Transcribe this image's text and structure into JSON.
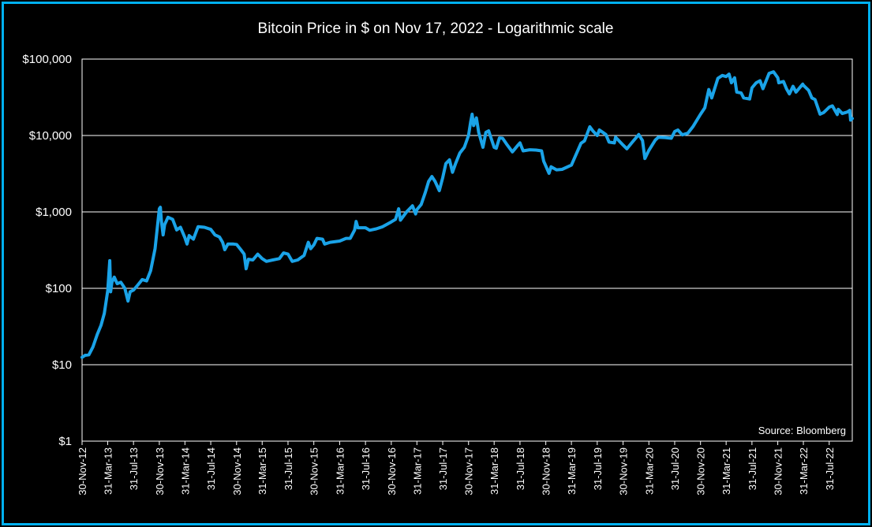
{
  "colors": {
    "line": "#1aa3e8",
    "frame": "#00b0f0",
    "background": "#000000",
    "grid": "#ffffff",
    "text": "#ffffff"
  },
  "chart_data": {
    "type": "line",
    "title": "Bitcoin Price in $ on Nov 17, 2022 - Logarithmic scale",
    "xlabel": "",
    "ylabel": "",
    "y_scale": "log",
    "ylim": [
      1,
      100000
    ],
    "xlim": [
      "2012-11-30",
      "2022-11-17"
    ],
    "grid": true,
    "legend": "none",
    "y_ticks": [
      {
        "value": 1,
        "label": "$1"
      },
      {
        "value": 10,
        "label": "$10"
      },
      {
        "value": 100,
        "label": "$100"
      },
      {
        "value": 1000,
        "label": "$1,000"
      },
      {
        "value": 10000,
        "label": "$10,000"
      },
      {
        "value": 100000,
        "label": "$100,000"
      }
    ],
    "x_ticks": [
      {
        "date": "2012-11-30",
        "label": "30-Nov-12"
      },
      {
        "date": "2013-03-31",
        "label": "31-Mar-13"
      },
      {
        "date": "2013-07-31",
        "label": "31-Jul-13"
      },
      {
        "date": "2013-11-30",
        "label": "30-Nov-13"
      },
      {
        "date": "2014-03-31",
        "label": "31-Mar-14"
      },
      {
        "date": "2014-07-31",
        "label": "31-Jul-14"
      },
      {
        "date": "2014-11-30",
        "label": "30-Nov-14"
      },
      {
        "date": "2015-03-31",
        "label": "31-Mar-15"
      },
      {
        "date": "2015-07-31",
        "label": "31-Jul-15"
      },
      {
        "date": "2015-11-30",
        "label": "30-Nov-15"
      },
      {
        "date": "2016-03-31",
        "label": "31-Mar-16"
      },
      {
        "date": "2016-07-31",
        "label": "31-Jul-16"
      },
      {
        "date": "2016-11-30",
        "label": "30-Nov-16"
      },
      {
        "date": "2017-03-31",
        "label": "31-Mar-17"
      },
      {
        "date": "2017-07-31",
        "label": "31-Jul-17"
      },
      {
        "date": "2017-11-30",
        "label": "30-Nov-17"
      },
      {
        "date": "2018-03-31",
        "label": "31-Mar-18"
      },
      {
        "date": "2018-07-31",
        "label": "31-Jul-18"
      },
      {
        "date": "2018-11-30",
        "label": "30-Nov-18"
      },
      {
        "date": "2019-03-31",
        "label": "31-Mar-19"
      },
      {
        "date": "2019-07-31",
        "label": "31-Jul-19"
      },
      {
        "date": "2019-11-30",
        "label": "30-Nov-19"
      },
      {
        "date": "2020-03-31",
        "label": "31-Mar-20"
      },
      {
        "date": "2020-07-31",
        "label": "31-Jul-20"
      },
      {
        "date": "2020-11-30",
        "label": "30-Nov-20"
      },
      {
        "date": "2021-03-31",
        "label": "31-Mar-21"
      },
      {
        "date": "2021-07-31",
        "label": "31-Jul-21"
      },
      {
        "date": "2021-11-30",
        "label": "30-Nov-21"
      },
      {
        "date": "2022-03-31",
        "label": "31-Mar-22"
      },
      {
        "date": "2022-07-31",
        "label": "31-Jul-22"
      }
    ],
    "series": [
      {
        "points": [
          {
            "x": "2012-11-30",
            "y": 12.5
          },
          {
            "x": "2012-12-15",
            "y": 13.3
          },
          {
            "x": "2013-01-01",
            "y": 13.5
          },
          {
            "x": "2013-01-20",
            "y": 17
          },
          {
            "x": "2013-02-10",
            "y": 25
          },
          {
            "x": "2013-02-28",
            "y": 33
          },
          {
            "x": "2013-03-15",
            "y": 47
          },
          {
            "x": "2013-03-31",
            "y": 93
          },
          {
            "x": "2013-04-10",
            "y": 230
          },
          {
            "x": "2013-04-14",
            "y": 90
          },
          {
            "x": "2013-04-20",
            "y": 120
          },
          {
            "x": "2013-05-01",
            "y": 140
          },
          {
            "x": "2013-05-15",
            "y": 115
          },
          {
            "x": "2013-06-01",
            "y": 120
          },
          {
            "x": "2013-06-20",
            "y": 100
          },
          {
            "x": "2013-07-05",
            "y": 68
          },
          {
            "x": "2013-07-15",
            "y": 90
          },
          {
            "x": "2013-07-31",
            "y": 95
          },
          {
            "x": "2013-08-20",
            "y": 110
          },
          {
            "x": "2013-09-10",
            "y": 130
          },
          {
            "x": "2013-10-01",
            "y": 125
          },
          {
            "x": "2013-10-20",
            "y": 170
          },
          {
            "x": "2013-11-10",
            "y": 330
          },
          {
            "x": "2013-11-30",
            "y": 1100
          },
          {
            "x": "2013-12-05",
            "y": 1150
          },
          {
            "x": "2013-12-10",
            "y": 750
          },
          {
            "x": "2013-12-18",
            "y": 500
          },
          {
            "x": "2013-12-25",
            "y": 680
          },
          {
            "x": "2014-01-10",
            "y": 850
          },
          {
            "x": "2014-02-01",
            "y": 800
          },
          {
            "x": "2014-02-20",
            "y": 580
          },
          {
            "x": "2014-03-10",
            "y": 630
          },
          {
            "x": "2014-03-31",
            "y": 460
          },
          {
            "x": "2014-04-10",
            "y": 380
          },
          {
            "x": "2014-04-20",
            "y": 490
          },
          {
            "x": "2014-05-10",
            "y": 440
          },
          {
            "x": "2014-06-01",
            "y": 640
          },
          {
            "x": "2014-07-01",
            "y": 630
          },
          {
            "x": "2014-07-31",
            "y": 590
          },
          {
            "x": "2014-08-20",
            "y": 500
          },
          {
            "x": "2014-09-10",
            "y": 470
          },
          {
            "x": "2014-09-25",
            "y": 400
          },
          {
            "x": "2014-10-05",
            "y": 320
          },
          {
            "x": "2014-10-20",
            "y": 380
          },
          {
            "x": "2014-11-15",
            "y": 380
          },
          {
            "x": "2014-11-30",
            "y": 375
          },
          {
            "x": "2014-12-20",
            "y": 320
          },
          {
            "x": "2015-01-05",
            "y": 280
          },
          {
            "x": "2015-01-14",
            "y": 180
          },
          {
            "x": "2015-01-25",
            "y": 240
          },
          {
            "x": "2015-02-15",
            "y": 235
          },
          {
            "x": "2015-03-10",
            "y": 280
          },
          {
            "x": "2015-03-31",
            "y": 245
          },
          {
            "x": "2015-04-20",
            "y": 225
          },
          {
            "x": "2015-05-20",
            "y": 235
          },
          {
            "x": "2015-06-20",
            "y": 245
          },
          {
            "x": "2015-07-10",
            "y": 290
          },
          {
            "x": "2015-07-31",
            "y": 280
          },
          {
            "x": "2015-08-20",
            "y": 225
          },
          {
            "x": "2015-09-15",
            "y": 235
          },
          {
            "x": "2015-10-15",
            "y": 270
          },
          {
            "x": "2015-11-04",
            "y": 400
          },
          {
            "x": "2015-11-15",
            "y": 330
          },
          {
            "x": "2015-11-30",
            "y": 370
          },
          {
            "x": "2015-12-15",
            "y": 450
          },
          {
            "x": "2016-01-10",
            "y": 440
          },
          {
            "x": "2016-01-20",
            "y": 380
          },
          {
            "x": "2016-02-15",
            "y": 400
          },
          {
            "x": "2016-03-31",
            "y": 415
          },
          {
            "x": "2016-04-30",
            "y": 450
          },
          {
            "x": "2016-05-20",
            "y": 450
          },
          {
            "x": "2016-06-10",
            "y": 580
          },
          {
            "x": "2016-06-17",
            "y": 750
          },
          {
            "x": "2016-06-25",
            "y": 620
          },
          {
            "x": "2016-07-31",
            "y": 620
          },
          {
            "x": "2016-08-20",
            "y": 575
          },
          {
            "x": "2016-09-20",
            "y": 600
          },
          {
            "x": "2016-10-20",
            "y": 640
          },
          {
            "x": "2016-11-30",
            "y": 740
          },
          {
            "x": "2016-12-20",
            "y": 800
          },
          {
            "x": "2017-01-04",
            "y": 1100
          },
          {
            "x": "2017-01-12",
            "y": 780
          },
          {
            "x": "2017-02-10",
            "y": 1000
          },
          {
            "x": "2017-03-10",
            "y": 1200
          },
          {
            "x": "2017-03-25",
            "y": 940
          },
          {
            "x": "2017-03-31",
            "y": 1070
          },
          {
            "x": "2017-04-20",
            "y": 1250
          },
          {
            "x": "2017-05-10",
            "y": 1800
          },
          {
            "x": "2017-05-25",
            "y": 2500
          },
          {
            "x": "2017-06-10",
            "y": 2900
          },
          {
            "x": "2017-06-25",
            "y": 2500
          },
          {
            "x": "2017-07-15",
            "y": 1900
          },
          {
            "x": "2017-07-31",
            "y": 2800
          },
          {
            "x": "2017-08-15",
            "y": 4300
          },
          {
            "x": "2017-09-01",
            "y": 4800
          },
          {
            "x": "2017-09-15",
            "y": 3300
          },
          {
            "x": "2017-10-01",
            "y": 4400
          },
          {
            "x": "2017-10-20",
            "y": 5900
          },
          {
            "x": "2017-11-10",
            "y": 7000
          },
          {
            "x": "2017-11-30",
            "y": 10000
          },
          {
            "x": "2017-12-10",
            "y": 15000
          },
          {
            "x": "2017-12-17",
            "y": 19000
          },
          {
            "x": "2017-12-24",
            "y": 13500
          },
          {
            "x": "2018-01-06",
            "y": 17000
          },
          {
            "x": "2018-01-17",
            "y": 11000
          },
          {
            "x": "2018-02-06",
            "y": 7000
          },
          {
            "x": "2018-02-20",
            "y": 11000
          },
          {
            "x": "2018-03-05",
            "y": 11500
          },
          {
            "x": "2018-03-31",
            "y": 7000
          },
          {
            "x": "2018-04-10",
            "y": 6800
          },
          {
            "x": "2018-04-25",
            "y": 9300
          },
          {
            "x": "2018-05-10",
            "y": 9200
          },
          {
            "x": "2018-06-01",
            "y": 7500
          },
          {
            "x": "2018-06-25",
            "y": 6100
          },
          {
            "x": "2018-07-20",
            "y": 7400
          },
          {
            "x": "2018-07-31",
            "y": 8000
          },
          {
            "x": "2018-08-15",
            "y": 6300
          },
          {
            "x": "2018-09-15",
            "y": 6500
          },
          {
            "x": "2018-10-15",
            "y": 6450
          },
          {
            "x": "2018-11-10",
            "y": 6300
          },
          {
            "x": "2018-11-20",
            "y": 4600
          },
          {
            "x": "2018-11-30",
            "y": 4000
          },
          {
            "x": "2018-12-15",
            "y": 3200
          },
          {
            "x": "2018-12-25",
            "y": 3900
          },
          {
            "x": "2019-01-20",
            "y": 3550
          },
          {
            "x": "2019-02-15",
            "y": 3600
          },
          {
            "x": "2019-03-31",
            "y": 4100
          },
          {
            "x": "2019-04-15",
            "y": 5100
          },
          {
            "x": "2019-05-15",
            "y": 7900
          },
          {
            "x": "2019-06-01",
            "y": 8500
          },
          {
            "x": "2019-06-26",
            "y": 13000
          },
          {
            "x": "2019-07-10",
            "y": 11500
          },
          {
            "x": "2019-07-31",
            "y": 10000
          },
          {
            "x": "2019-08-10",
            "y": 11800
          },
          {
            "x": "2019-09-10",
            "y": 10300
          },
          {
            "x": "2019-09-25",
            "y": 8200
          },
          {
            "x": "2019-10-20",
            "y": 8000
          },
          {
            "x": "2019-10-26",
            "y": 9500
          },
          {
            "x": "2019-11-30",
            "y": 7500
          },
          {
            "x": "2019-12-18",
            "y": 6700
          },
          {
            "x": "2020-01-10",
            "y": 8000
          },
          {
            "x": "2020-02-12",
            "y": 10300
          },
          {
            "x": "2020-03-01",
            "y": 8600
          },
          {
            "x": "2020-03-12",
            "y": 5000
          },
          {
            "x": "2020-03-31",
            "y": 6400
          },
          {
            "x": "2020-04-30",
            "y": 8700
          },
          {
            "x": "2020-05-15",
            "y": 9500
          },
          {
            "x": "2020-06-15",
            "y": 9400
          },
          {
            "x": "2020-07-15",
            "y": 9200
          },
          {
            "x": "2020-07-31",
            "y": 11300
          },
          {
            "x": "2020-08-15",
            "y": 11800
          },
          {
            "x": "2020-09-05",
            "y": 10200
          },
          {
            "x": "2020-10-01",
            "y": 10700
          },
          {
            "x": "2020-10-25",
            "y": 13000
          },
          {
            "x": "2020-11-30",
            "y": 19000
          },
          {
            "x": "2020-12-20",
            "y": 23000
          },
          {
            "x": "2021-01-08",
            "y": 40000
          },
          {
            "x": "2021-01-22",
            "y": 31000
          },
          {
            "x": "2021-02-20",
            "y": 56000
          },
          {
            "x": "2021-03-13",
            "y": 61000
          },
          {
            "x": "2021-03-31",
            "y": 59000
          },
          {
            "x": "2021-04-14",
            "y": 63500
          },
          {
            "x": "2021-04-25",
            "y": 49000
          },
          {
            "x": "2021-05-10",
            "y": 57000
          },
          {
            "x": "2021-05-20",
            "y": 37000
          },
          {
            "x": "2021-06-10",
            "y": 36000
          },
          {
            "x": "2021-06-22",
            "y": 31000
          },
          {
            "x": "2021-07-20",
            "y": 30000
          },
          {
            "x": "2021-07-31",
            "y": 42000
          },
          {
            "x": "2021-08-20",
            "y": 49000
          },
          {
            "x": "2021-09-07",
            "y": 52000
          },
          {
            "x": "2021-09-21",
            "y": 41000
          },
          {
            "x": "2021-10-20",
            "y": 65000
          },
          {
            "x": "2021-11-10",
            "y": 68000
          },
          {
            "x": "2021-11-30",
            "y": 57000
          },
          {
            "x": "2021-12-05",
            "y": 49000
          },
          {
            "x": "2021-12-27",
            "y": 51000
          },
          {
            "x": "2022-01-10",
            "y": 41000
          },
          {
            "x": "2022-01-24",
            "y": 35000
          },
          {
            "x": "2022-02-10",
            "y": 44000
          },
          {
            "x": "2022-02-24",
            "y": 37000
          },
          {
            "x": "2022-03-28",
            "y": 47000
          },
          {
            "x": "2022-03-31",
            "y": 45500
          },
          {
            "x": "2022-04-25",
            "y": 39000
          },
          {
            "x": "2022-05-10",
            "y": 31000
          },
          {
            "x": "2022-05-25",
            "y": 29500
          },
          {
            "x": "2022-06-18",
            "y": 19000
          },
          {
            "x": "2022-07-05",
            "y": 20000
          },
          {
            "x": "2022-07-31",
            "y": 23500
          },
          {
            "x": "2022-08-15",
            "y": 24400
          },
          {
            "x": "2022-09-07",
            "y": 18800
          },
          {
            "x": "2022-09-12",
            "y": 22000
          },
          {
            "x": "2022-10-01",
            "y": 19400
          },
          {
            "x": "2022-10-25",
            "y": 20300
          },
          {
            "x": "2022-11-05",
            "y": 21300
          },
          {
            "x": "2022-11-09",
            "y": 15900
          },
          {
            "x": "2022-11-17",
            "y": 16700
          }
        ]
      }
    ],
    "annotations": [
      {
        "text": "Source: Bloomberg",
        "position": "bottom-right"
      }
    ]
  }
}
